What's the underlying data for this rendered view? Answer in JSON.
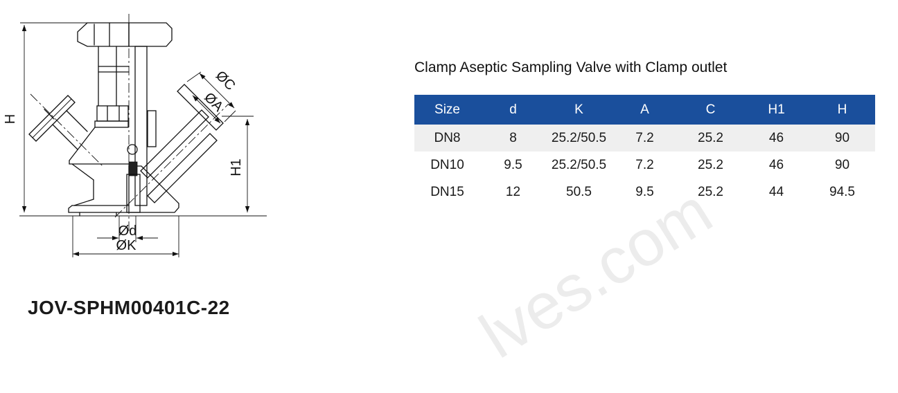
{
  "page": {
    "background": "#ffffff"
  },
  "drawing": {
    "product_code": "JOV-SPHM00401C-22",
    "dimension_labels": {
      "height_total": "H",
      "outlet_height": "H1",
      "outlet_clamp_od": "ØC",
      "outlet_bore": "ØA",
      "bottom_bore": "Ød",
      "bottom_clamp_od": "ØK"
    }
  },
  "spec_section": {
    "title": "Clamp Aseptic Sampling Valve with Clamp outlet",
    "table": {
      "columns": [
        "Size",
        "d",
        "K",
        "A",
        "C",
        "H1",
        "H"
      ],
      "rows": [
        [
          "DN8",
          "8",
          "25.2/50.5",
          "7.2",
          "25.2",
          "46",
          "90"
        ],
        [
          "DN10",
          "9.5",
          "25.2/50.5",
          "7.2",
          "25.2",
          "46",
          "90"
        ],
        [
          "DN15",
          "12",
          "50.5",
          "9.5",
          "25.2",
          "44",
          "94.5"
        ]
      ],
      "colors": {
        "header_bg": "#1a4f9c",
        "header_text": "#ffffff",
        "stripe_bg": "#efefef",
        "cell_text": "#1a1a1a"
      }
    }
  },
  "watermark": {
    "text": "lves.com",
    "color": "#ececec"
  }
}
